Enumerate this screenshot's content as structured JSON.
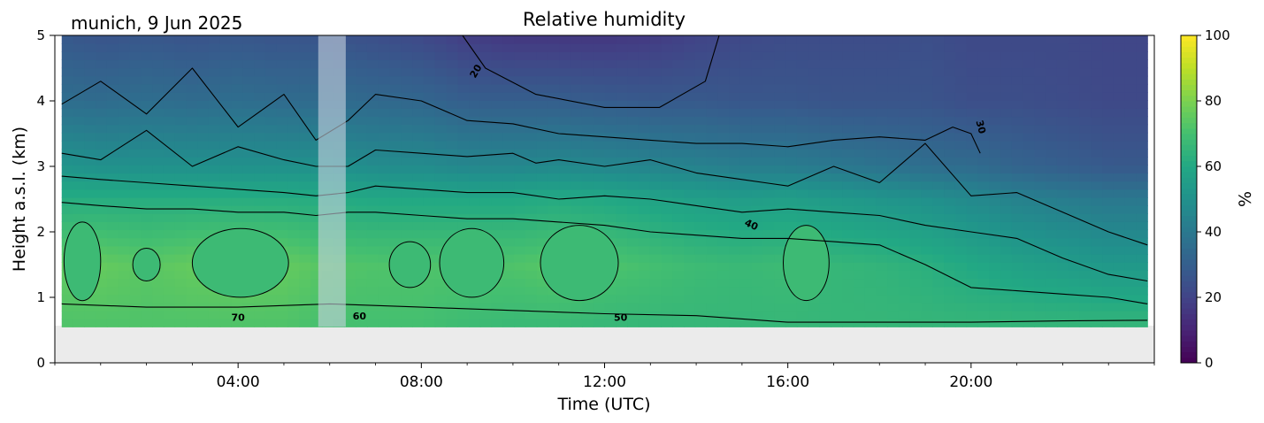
{
  "chart_data": {
    "type": "heatmap",
    "title": "Relative humidity",
    "subtitle": "munich, 9 Jun 2025",
    "xlabel": "Time (UTC)",
    "ylabel": "Height a.s.l. (km)",
    "x_ticks": [
      "04:00",
      "08:00",
      "12:00",
      "16:00",
      "20:00"
    ],
    "x_tick_hours": [
      4,
      8,
      12,
      16,
      20
    ],
    "xlim_hours": [
      0,
      24
    ],
    "ylim": [
      0,
      5
    ],
    "y_ticks": [
      0,
      1,
      2,
      3,
      4,
      5
    ],
    "data_bottom_km": 0.55,
    "missing_data_hours": [
      5.75,
      6.35
    ],
    "colorbar": {
      "label": "%",
      "range": [
        0,
        100
      ],
      "ticks": [
        0,
        20,
        40,
        60,
        80,
        100
      ],
      "colormap": "viridis"
    },
    "contour_labels": [
      {
        "text": "20",
        "hour": 9.2,
        "km": 4.45,
        "angle": -60
      },
      {
        "text": "30",
        "hour": 20.2,
        "km": 3.6,
        "angle": 75
      },
      {
        "text": "40",
        "hour": 15.2,
        "km": 2.1,
        "angle": 25
      },
      {
        "text": "50",
        "hour": 12.35,
        "km": 0.68,
        "angle": 0
      },
      {
        "text": "60",
        "hour": 6.65,
        "km": 0.7,
        "angle": 0
      },
      {
        "text": "70",
        "hour": 4.0,
        "km": 0.68,
        "angle": 0
      }
    ],
    "contours": [
      {
        "level": 20,
        "hour": [
          8.9,
          9.4,
          10.5,
          12.0,
          13.2,
          14.2,
          14.5
        ],
        "km": [
          5.0,
          4.5,
          4.1,
          3.9,
          3.9,
          4.3,
          5.0
        ]
      },
      {
        "level": 30,
        "hour": [
          0.15,
          1.0,
          2.0,
          3.0,
          4.0,
          5.0,
          5.7,
          6.4,
          7.0,
          8.0,
          9.0,
          10.0,
          11.0,
          12.0,
          13.0,
          14.0,
          15.0,
          16.0,
          17.0,
          18.0,
          19.0,
          19.6,
          20.0,
          20.2
        ],
        "km": [
          3.95,
          4.3,
          3.8,
          4.5,
          3.6,
          4.1,
          3.4,
          3.7,
          4.1,
          4.0,
          3.7,
          3.65,
          3.5,
          3.45,
          3.4,
          3.35,
          3.35,
          3.3,
          3.4,
          3.45,
          3.4,
          3.6,
          3.5,
          3.2
        ]
      },
      {
        "level": 40,
        "hour": [
          0.15,
          1.0,
          2.0,
          3.0,
          4.0,
          5.0,
          5.7,
          6.4,
          7.0,
          8.0,
          9.0,
          10.0,
          10.5,
          11.0,
          12.0,
          13.0,
          14.0,
          15.0,
          15.5,
          16.0,
          17.0,
          18.0,
          19.0,
          20.0,
          21.0,
          22.0,
          23.0,
          23.85
        ],
        "km": [
          3.2,
          3.1,
          3.55,
          3.0,
          3.3,
          3.1,
          3.0,
          3.0,
          3.25,
          3.2,
          3.15,
          3.2,
          3.05,
          3.1,
          3.0,
          3.1,
          2.9,
          2.8,
          2.75,
          2.7,
          3.0,
          2.75,
          3.35,
          2.55,
          2.6,
          2.3,
          2.0,
          1.8
        ]
      },
      {
        "level": 50,
        "hour": [
          0.15,
          1.0,
          2.0,
          3.0,
          4.0,
          5.0,
          5.7,
          6.4,
          7.0,
          8.0,
          9.0,
          10.0,
          11.0,
          12.0,
          13.0,
          14.0,
          15.0,
          16.0,
          17.0,
          18.0,
          19.0,
          20.0,
          21.0,
          22.0,
          23.0,
          23.85
        ],
        "km": [
          2.85,
          2.8,
          2.75,
          2.7,
          2.65,
          2.6,
          2.55,
          2.6,
          2.7,
          2.65,
          2.6,
          2.6,
          2.5,
          2.55,
          2.5,
          2.4,
          2.3,
          2.35,
          2.3,
          2.25,
          2.1,
          2.0,
          1.9,
          1.6,
          1.35,
          1.25
        ]
      },
      {
        "level": 60,
        "hour": [
          0.15,
          1.0,
          2.0,
          3.0,
          4.0,
          5.0,
          5.7,
          6.4,
          7.0,
          8.0,
          9.0,
          10.0,
          11.0,
          12.0,
          13.0,
          14.0,
          15.0,
          16.0,
          17.0,
          18.0,
          19.0,
          20.0,
          21.0,
          22.0,
          23.0,
          23.85
        ],
        "km": [
          2.45,
          2.4,
          2.35,
          2.35,
          2.3,
          2.3,
          2.25,
          2.3,
          2.3,
          2.25,
          2.2,
          2.2,
          2.15,
          2.1,
          2.0,
          1.95,
          1.9,
          1.9,
          1.85,
          1.8,
          1.5,
          1.15,
          1.1,
          1.05,
          1.0,
          0.9
        ]
      },
      {
        "level": 70,
        "hour": [
          0.15,
          2.0,
          4.0,
          6.0,
          8.0,
          10.0,
          12.0,
          14.0,
          16.0,
          18.0,
          20.0,
          22.0,
          23.85
        ],
        "km": [
          0.9,
          0.85,
          0.85,
          0.9,
          0.85,
          0.8,
          0.75,
          0.72,
          0.62,
          0.62,
          0.62,
          0.64,
          0.65
        ]
      }
    ],
    "moist_cells": [
      {
        "h0": 0.2,
        "h1": 1.0,
        "k0": 0.95,
        "k1": 2.15
      },
      {
        "h0": 1.7,
        "h1": 2.3,
        "k0": 1.25,
        "k1": 1.75
      },
      {
        "h0": 3.0,
        "h1": 5.1,
        "k0": 1.0,
        "k1": 2.05
      },
      {
        "h0": 7.3,
        "h1": 8.2,
        "k0": 1.15,
        "k1": 1.85
      },
      {
        "h0": 8.4,
        "h1": 9.8,
        "k0": 1.0,
        "k1": 2.05
      },
      {
        "h0": 10.6,
        "h1": 12.3,
        "k0": 0.95,
        "k1": 2.1
      },
      {
        "h0": 15.9,
        "h1": 16.9,
        "k0": 0.95,
        "k1": 2.1
      }
    ],
    "profiles": [
      {
        "hour": 0.0,
        "rh": [
          72,
          75,
          62,
          52,
          36,
          28
        ]
      },
      {
        "hour": 1.0,
        "rh": [
          72,
          76,
          62,
          50,
          35,
          26
        ]
      },
      {
        "hour": 2.0,
        "rh": [
          72,
          74,
          62,
          50,
          36,
          27
        ]
      },
      {
        "hour": 3.0,
        "rh": [
          72,
          76,
          62,
          50,
          35,
          26
        ]
      },
      {
        "hour": 4.0,
        "rh": [
          72,
          77,
          62,
          50,
          36,
          27
        ]
      },
      {
        "hour": 5.0,
        "rh": [
          72,
          76,
          62,
          50,
          35,
          26
        ]
      },
      {
        "hour": 6.0,
        "rh": [
          70,
          73,
          61,
          50,
          35,
          26
        ]
      },
      {
        "hour": 7.0,
        "rh": [
          70,
          72,
          60,
          48,
          34,
          24
        ]
      },
      {
        "hour": 8.0,
        "rh": [
          70,
          72,
          60,
          48,
          33,
          22
        ]
      },
      {
        "hour": 9.0,
        "rh": [
          68,
          72,
          60,
          46,
          30,
          18
        ]
      },
      {
        "hour": 10.0,
        "rh": [
          67,
          72,
          60,
          46,
          30,
          16
        ]
      },
      {
        "hour": 11.0,
        "rh": [
          67,
          74,
          61,
          47,
          30,
          16
        ]
      },
      {
        "hour": 12.0,
        "rh": [
          66,
          72,
          60,
          46,
          29,
          16
        ]
      },
      {
        "hour": 13.0,
        "rh": [
          66,
          70,
          58,
          45,
          28,
          17
        ]
      },
      {
        "hour": 14.0,
        "rh": [
          66,
          68,
          56,
          44,
          28,
          20
        ]
      },
      {
        "hour": 15.0,
        "rh": [
          66,
          67,
          55,
          42,
          27,
          22
        ]
      },
      {
        "hour": 16.0,
        "rh": [
          66,
          68,
          56,
          42,
          27,
          23
        ]
      },
      {
        "hour": 17.0,
        "rh": [
          66,
          66,
          54,
          40,
          26,
          23
        ]
      },
      {
        "hour": 18.0,
        "rh": [
          66,
          65,
          52,
          38,
          26,
          23
        ]
      },
      {
        "hour": 19.0,
        "rh": [
          66,
          63,
          50,
          36,
          26,
          24
        ]
      },
      {
        "hour": 20.0,
        "rh": [
          66,
          60,
          47,
          35,
          24,
          22
        ]
      },
      {
        "hour": 21.0,
        "rh": [
          66,
          57,
          44,
          32,
          24,
          22
        ]
      },
      {
        "hour": 22.0,
        "rh": [
          66,
          55,
          42,
          30,
          23,
          22
        ]
      },
      {
        "hour": 23.0,
        "rh": [
          66,
          53,
          40,
          28,
          22,
          21
        ]
      },
      {
        "hour": 24.0,
        "rh": [
          66,
          53,
          40,
          28,
          22,
          21
        ]
      }
    ],
    "profile_heights_km": [
      0.55,
      1.5,
      2.5,
      3.0,
      4.0,
      5.0
    ],
    "grid": false,
    "colors": {
      "missing_band": "#c8d2e0",
      "below_data": "#ebebeb",
      "contour": "#000000"
    }
  }
}
